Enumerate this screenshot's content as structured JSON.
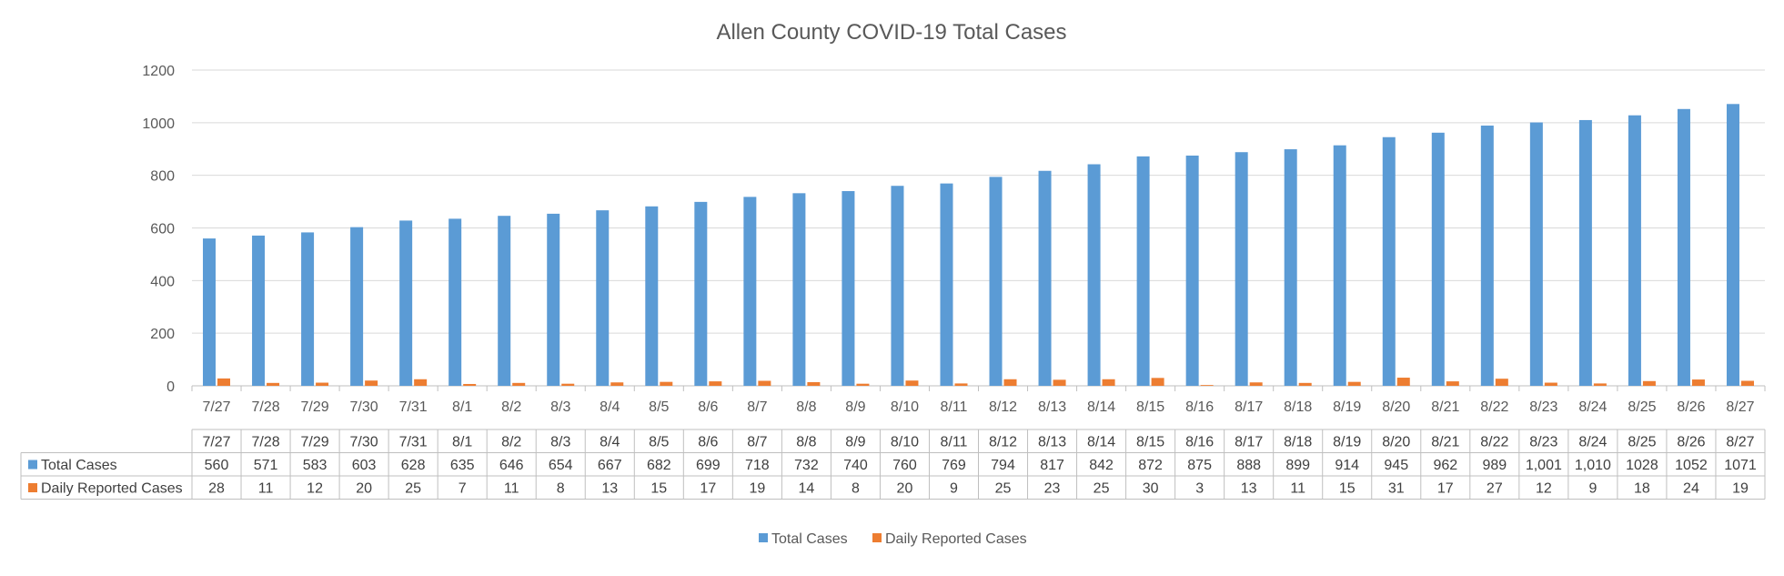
{
  "chart_data": {
    "type": "bar",
    "title": "Allen County COVID-19 Total Cases",
    "categories": [
      "7/27",
      "7/28",
      "7/29",
      "7/30",
      "7/31",
      "8/1",
      "8/2",
      "8/3",
      "8/4",
      "8/5",
      "8/6",
      "8/7",
      "8/8",
      "8/9",
      "8/10",
      "8/11",
      "8/12",
      "8/13",
      "8/14",
      "8/15",
      "8/16",
      "8/17",
      "8/18",
      "8/19",
      "8/20",
      "8/21",
      "8/22",
      "8/23",
      "8/24",
      "8/25",
      "8/26",
      "8/27"
    ],
    "series": [
      {
        "name": "Total Cases",
        "color": "#5B9BD5",
        "values": [
          560,
          571,
          583,
          603,
          628,
          635,
          646,
          654,
          667,
          682,
          699,
          718,
          732,
          740,
          760,
          769,
          794,
          817,
          842,
          872,
          875,
          888,
          899,
          914,
          945,
          962,
          989,
          1001,
          1010,
          1028,
          1052,
          1071
        ],
        "display": [
          "560",
          "571",
          "583",
          "603",
          "628",
          "635",
          "646",
          "654",
          "667",
          "682",
          "699",
          "718",
          "732",
          "740",
          "760",
          "769",
          "794",
          "817",
          "842",
          "872",
          "875",
          "888",
          "899",
          "914",
          "945",
          "962",
          "989",
          "1,001",
          "1,010",
          "1028",
          "1052",
          "1071"
        ]
      },
      {
        "name": "Daily Reported Cases",
        "color": "#ED7D31",
        "values": [
          28,
          11,
          12,
          20,
          25,
          7,
          11,
          8,
          13,
          15,
          17,
          19,
          14,
          8,
          20,
          9,
          25,
          23,
          25,
          30,
          3,
          13,
          11,
          15,
          31,
          17,
          27,
          12,
          9,
          18,
          24,
          19
        ],
        "display": [
          "28",
          "11",
          "12",
          "20",
          "25",
          "7",
          "11",
          "8",
          "13",
          "15",
          "17",
          "19",
          "14",
          "8",
          "20",
          "9",
          "25",
          "23",
          "25",
          "30",
          "3",
          "13",
          "11",
          "15",
          "31",
          "17",
          "27",
          "12",
          "9",
          "18",
          "24",
          "19"
        ]
      }
    ],
    "ylim": [
      0,
      1200
    ],
    "yticks": [
      0,
      200,
      400,
      600,
      800,
      1000,
      1200
    ],
    "grid": true,
    "legend_position": "bottom",
    "data_table": true
  }
}
